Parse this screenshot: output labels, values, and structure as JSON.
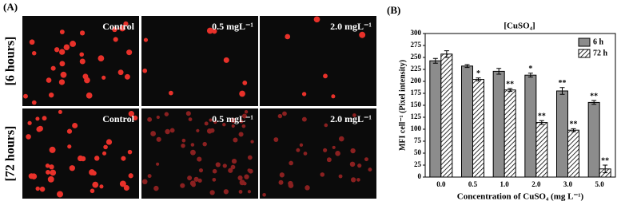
{
  "panel_a": {
    "label": "(A)",
    "rows": [
      "[6 hours]",
      "[72 hours]"
    ],
    "columns": [
      "Control",
      "0.5 mgL⁻¹",
      "2.0 mgL⁻¹"
    ]
  },
  "chart_data": {
    "type": "bar",
    "panel_label": "(B)",
    "title": "[CuSO₄]",
    "x_label": "Concentration of CuSO₄ (mg L⁻¹)",
    "y_label": "MFI cell⁻¹ (Pixel intensity)",
    "categories": [
      "0.0",
      "0.5",
      "1.0",
      "2.0",
      "3.0",
      "5.0"
    ],
    "series": [
      {
        "name": "6 h",
        "color": "#8c8c8c",
        "pattern": "solid",
        "values": [
          243,
          232,
          221,
          213,
          180,
          156
        ],
        "errors": [
          5,
          3,
          6,
          4,
          7,
          4
        ],
        "annotations": [
          null,
          null,
          null,
          "*",
          "**",
          "**"
        ]
      },
      {
        "name": "72 h",
        "color": "#ffffff",
        "pattern": "hatch",
        "values": [
          257,
          204,
          182,
          114,
          98,
          17
        ],
        "errors": [
          7,
          3,
          3,
          4,
          3,
          8
        ],
        "annotations": [
          null,
          "*",
          "**",
          "**",
          "**",
          "**"
        ]
      }
    ],
    "ylim": [
      0,
      300
    ],
    "yticks": [
      0,
      25,
      50,
      75,
      100,
      125,
      150,
      175,
      200,
      225,
      250,
      275,
      300
    ],
    "legend": "upper right"
  }
}
